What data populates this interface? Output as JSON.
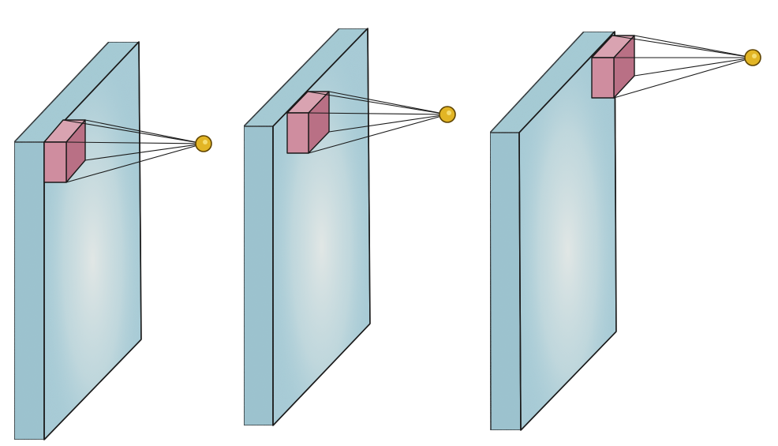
{
  "diagram": {
    "panel_count": 3,
    "lines_per_kernel": 4,
    "colors": {
      "background": "#ffffff",
      "slab_front": "#a9cdd8",
      "slab_side": "#9cc4d0",
      "slab_top": "#a6ccd6",
      "slab_highlight": "#e4e8e6",
      "outline": "#1a1a1a",
      "kernel_front": "#cf8d9f",
      "kernel_side": "#b97085",
      "kernel_top": "#d9a3b1",
      "neuron": "#e2b525",
      "neuron_outline": "#5e4300"
    },
    "panels": [
      {
        "label": "",
        "kernel_position": "upper-middle"
      },
      {
        "label": "",
        "kernel_position": "upper"
      },
      {
        "label": "",
        "kernel_position": "top-edge"
      }
    ]
  }
}
